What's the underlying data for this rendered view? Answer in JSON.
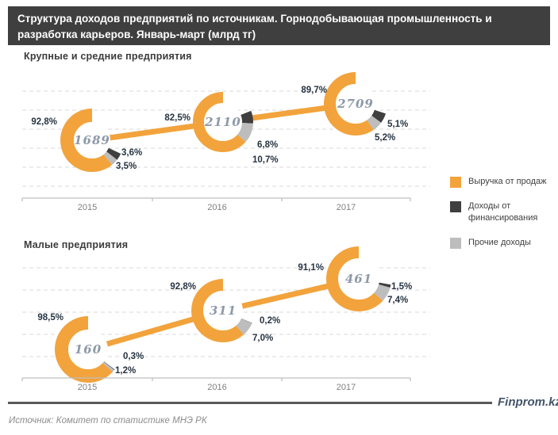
{
  "header": {
    "title": "Структура доходов предприятий по источникам. Горнодобывающая промышленность и разработка карьеров. Январь-март (млрд тг)"
  },
  "legend": {
    "position": "right",
    "items": [
      {
        "label": "Выручка от продаж",
        "color": "#F2A33C"
      },
      {
        "label": "Доходы от финансирования",
        "color": "#3F3F3F"
      },
      {
        "label": "Прочие доходы",
        "color": "#BDBDBD"
      }
    ]
  },
  "colors": {
    "sales": "#F2A33C",
    "finance": "#3F3F3F",
    "other": "#BDBDBD",
    "trend_line": "#F2A33C",
    "grid": "#D9D9D9",
    "axis": "#BFBFBF"
  },
  "chart_data": [
    {
      "type": "donut-series-line",
      "title": "Крупные и средние предприятия",
      "categories": [
        "2015",
        "2016",
        "2017"
      ],
      "totals": [
        1689,
        2110,
        2709
      ],
      "series": [
        {
          "name": "Выручка от продаж",
          "values": [
            92.8,
            82.5,
            89.7
          ]
        },
        {
          "name": "Доходы от финансирования",
          "values": [
            3.6,
            6.8,
            5.1
          ]
        },
        {
          "name": "Прочие доходы",
          "values": [
            3.5,
            10.7,
            5.2
          ]
        }
      ],
      "grid": true,
      "legend_position": "right",
      "value_unit": "млрд тг"
    },
    {
      "type": "donut-series-line",
      "title": "Малые предприятия",
      "categories": [
        "2015",
        "2016",
        "2017"
      ],
      "totals": [
        160,
        311,
        461
      ],
      "series": [
        {
          "name": "Выручка от продаж",
          "values": [
            98.5,
            92.8,
            91.1
          ]
        },
        {
          "name": "Доходы от финансирования",
          "values": [
            0.3,
            0.2,
            1.5
          ]
        },
        {
          "name": "Прочие доходы",
          "values": [
            1.2,
            7.0,
            7.4
          ]
        }
      ],
      "grid": true,
      "legend_position": "right",
      "value_unit": "млрд тг"
    }
  ],
  "footer": {
    "brand": "Finprom.kz",
    "source": "Источник:  Комитет по статистике МНЭ РК"
  }
}
